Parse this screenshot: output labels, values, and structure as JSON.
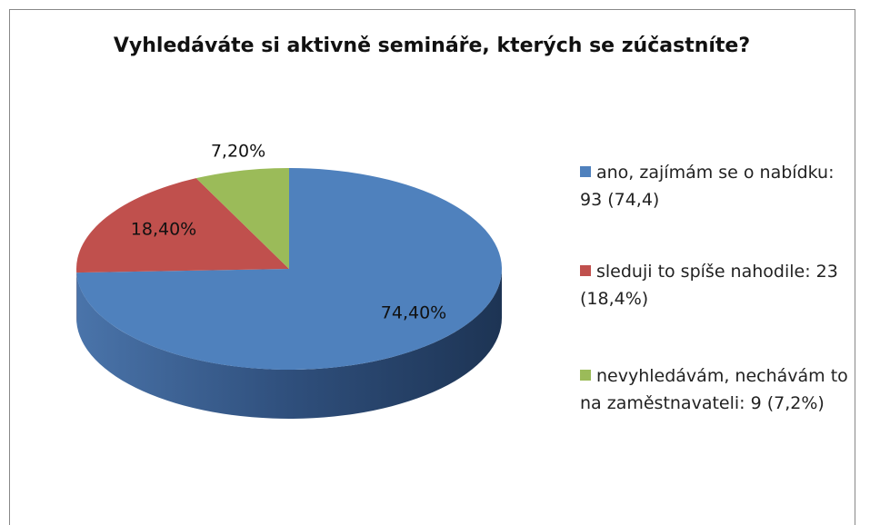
{
  "chart_data": {
    "type": "pie",
    "title": "Vyhledáváte si aktivně semináře, kterých se zúčastníte?",
    "series": [
      {
        "name": "ano, zajímám se o nabídku: 93 (74,4)",
        "color": "#4f81bd",
        "values": [
          74.4
        ],
        "value_labels": [
          "74,40%"
        ]
      },
      {
        "name": "sleduji to spíše nahodile: 23 (18,4%)",
        "color": "#c0504d",
        "values": [
          18.4
        ],
        "value_labels": [
          "18,40%"
        ]
      },
      {
        "name": "nevyhledávám, nechávám to na zaměstnavateli: 9 (7,2%)",
        "color": "#9bbb59",
        "values": [
          7.2
        ],
        "value_labels": [
          "7,20%"
        ]
      }
    ],
    "legend": "right"
  }
}
